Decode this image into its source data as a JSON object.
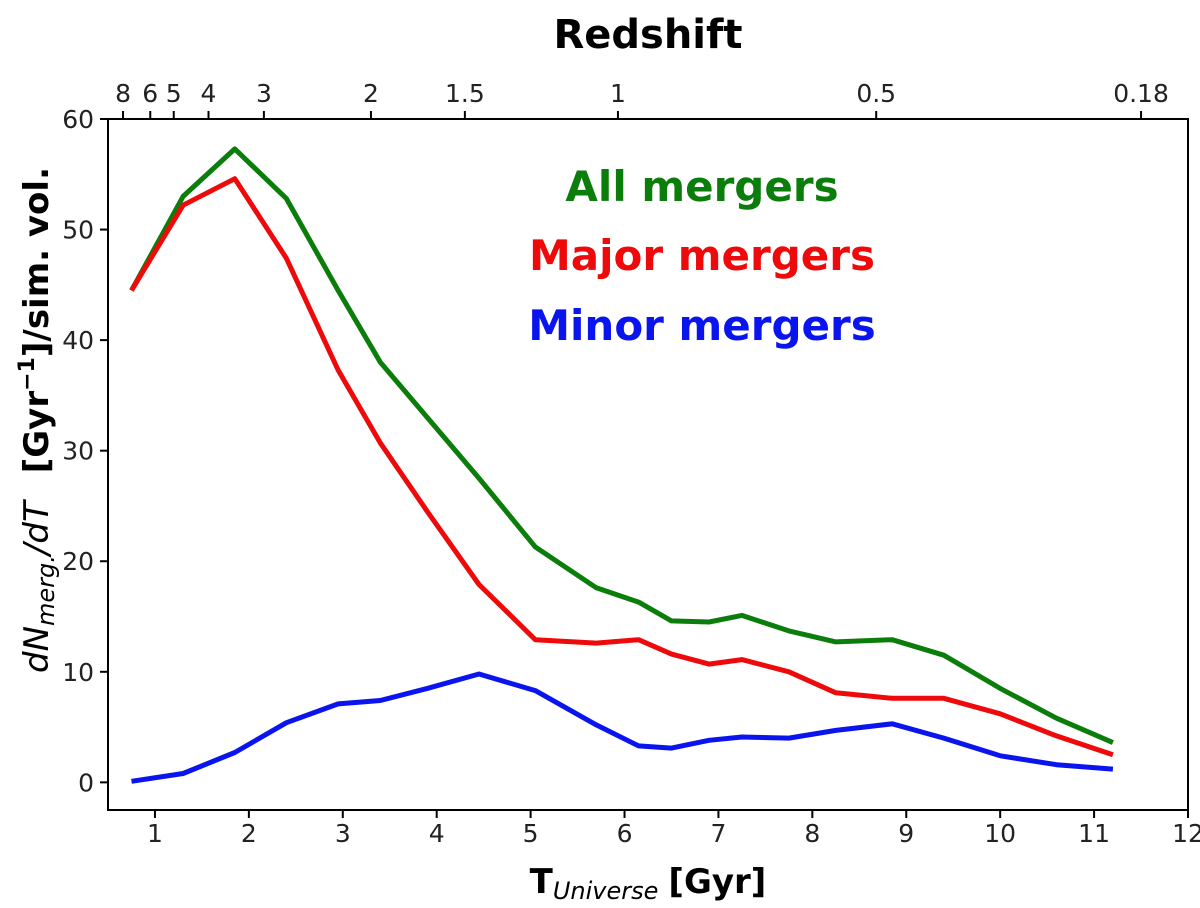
{
  "chart_data": {
    "type": "line",
    "top_axis": {
      "title": "Redshift",
      "ticks": [
        {
          "label": "8",
          "t": 0.66
        },
        {
          "label": "6",
          "t": 0.95
        },
        {
          "label": "5",
          "t": 1.2
        },
        {
          "label": "4",
          "t": 1.57
        },
        {
          "label": "3",
          "t": 2.16
        },
        {
          "label": "2",
          "t": 3.3
        },
        {
          "label": "1.5",
          "t": 4.3
        },
        {
          "label": "1",
          "t": 5.93
        },
        {
          "label": "0.5",
          "t": 8.68
        },
        {
          "label": "0.18",
          "t": 11.5
        }
      ]
    },
    "x_axis": {
      "label_main": "T",
      "label_sub": "Universe",
      "label_unit": "[Gyr]",
      "range": [
        0.5,
        12
      ],
      "ticks": [
        1,
        2,
        3,
        4,
        5,
        6,
        7,
        8,
        9,
        10,
        11,
        12
      ]
    },
    "y_axis": {
      "label_math": "dN",
      "label_sub": "merg.",
      "label_math2": "/dT",
      "label_bold": "[Gyr",
      "label_sup": "−1",
      "label_bold2": "]/sim. vol.",
      "range": [
        -2.5,
        60
      ],
      "ticks": [
        0,
        10,
        20,
        30,
        40,
        50,
        60
      ]
    },
    "x": [
      0.75,
      1.3,
      1.85,
      2.4,
      2.95,
      3.4,
      3.9,
      4.45,
      5.05,
      5.7,
      6.15,
      6.5,
      6.9,
      7.25,
      7.75,
      8.25,
      8.85,
      9.4,
      10,
      10.6,
      11.2
    ],
    "series": [
      {
        "name": "All mergers",
        "color": "#0a7d0a",
        "values": [
          44.5,
          53,
          57.3,
          52.8,
          44.5,
          38,
          33,
          27.5,
          21.3,
          17.6,
          16.3,
          14.6,
          14.5,
          15.1,
          13.7,
          12.7,
          12.9,
          11.5,
          8.5,
          5.8,
          3.6
        ]
      },
      {
        "name": "Major mergers",
        "color": "#ee0a0a",
        "values": [
          44.5,
          52.2,
          54.6,
          47.4,
          37.3,
          30.7,
          24.5,
          17.9,
          12.9,
          12.6,
          12.9,
          11.6,
          10.7,
          11.1,
          10.0,
          8.1,
          7.6,
          7.6,
          6.2,
          4.2,
          2.5
        ]
      },
      {
        "name": "Minor mergers",
        "color": "#0a14ee",
        "values": [
          0.1,
          0.8,
          2.7,
          5.4,
          7.1,
          7.4,
          8.5,
          9.8,
          8.3,
          5.2,
          3.3,
          3.1,
          3.8,
          4.1,
          4.0,
          4.7,
          5.3,
          4.0,
          2.4,
          1.6,
          1.2
        ]
      }
    ]
  }
}
